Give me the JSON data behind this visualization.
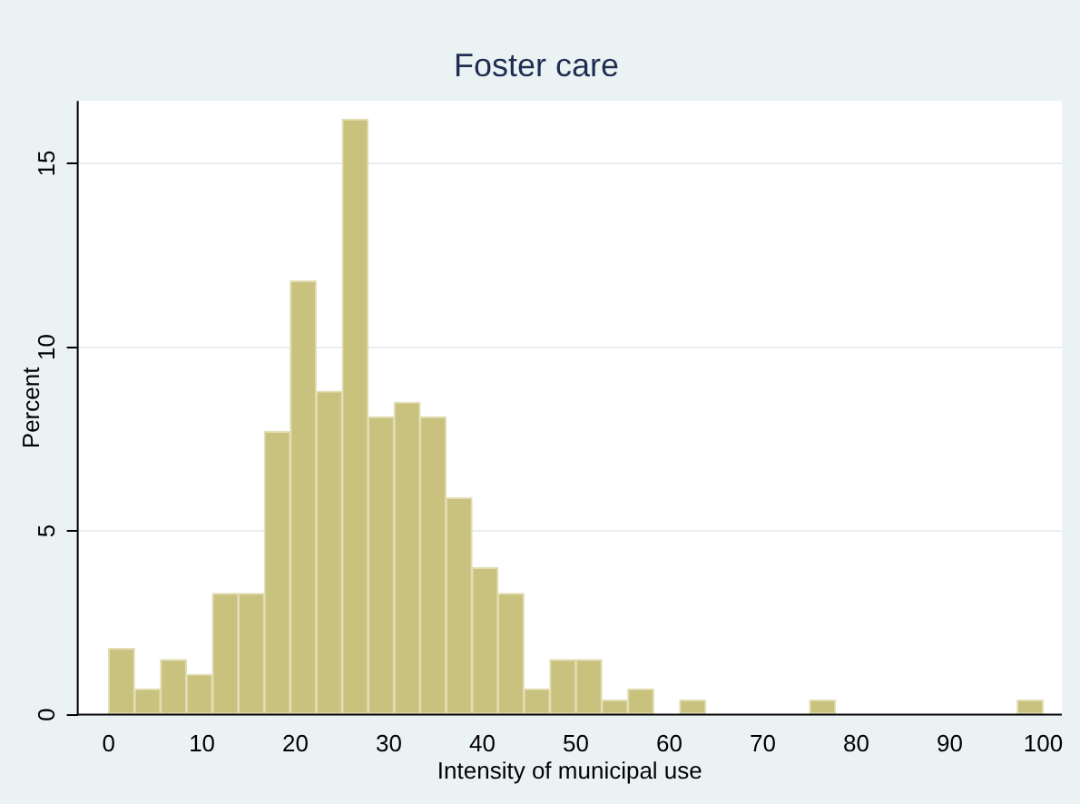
{
  "chart_data": {
    "type": "histogram",
    "title": "Foster care",
    "xlabel": "Intensity of municipal use",
    "ylabel": "Percent",
    "bins": [
      0,
      2.78,
      5.56,
      8.33,
      11.11,
      13.89,
      16.67,
      19.44,
      22.22,
      25,
      27.78,
      30.56,
      33.33,
      36.11,
      38.89,
      41.67,
      44.44,
      47.22,
      50,
      52.78,
      55.56,
      58.33,
      61.11,
      63.89,
      66.67,
      69.44,
      72.22,
      75,
      77.78,
      80.56,
      83.33,
      86.11,
      88.89,
      91.67,
      94.44,
      97.22,
      100
    ],
    "values": [
      1.8,
      0.7,
      1.5,
      1.1,
      3.3,
      3.3,
      7.7,
      11.8,
      8.8,
      16.2,
      8.1,
      8.5,
      8.1,
      5.9,
      4.0,
      3.3,
      0.7,
      1.5,
      1.5,
      0.4,
      0.7,
      0,
      0.4,
      0,
      0,
      0,
      0,
      0.4,
      0,
      0,
      0,
      0,
      0,
      0,
      0,
      0.4
    ],
    "color": "#c9c27f",
    "xlim": [
      -3.3,
      102
    ],
    "xticks": [
      0,
      10,
      20,
      30,
      40,
      50,
      60,
      70,
      80,
      90,
      100
    ],
    "ylim": [
      0,
      16.7
    ],
    "yticks": [
      0,
      5,
      10,
      15
    ],
    "grid": "y",
    "legend": false
  }
}
